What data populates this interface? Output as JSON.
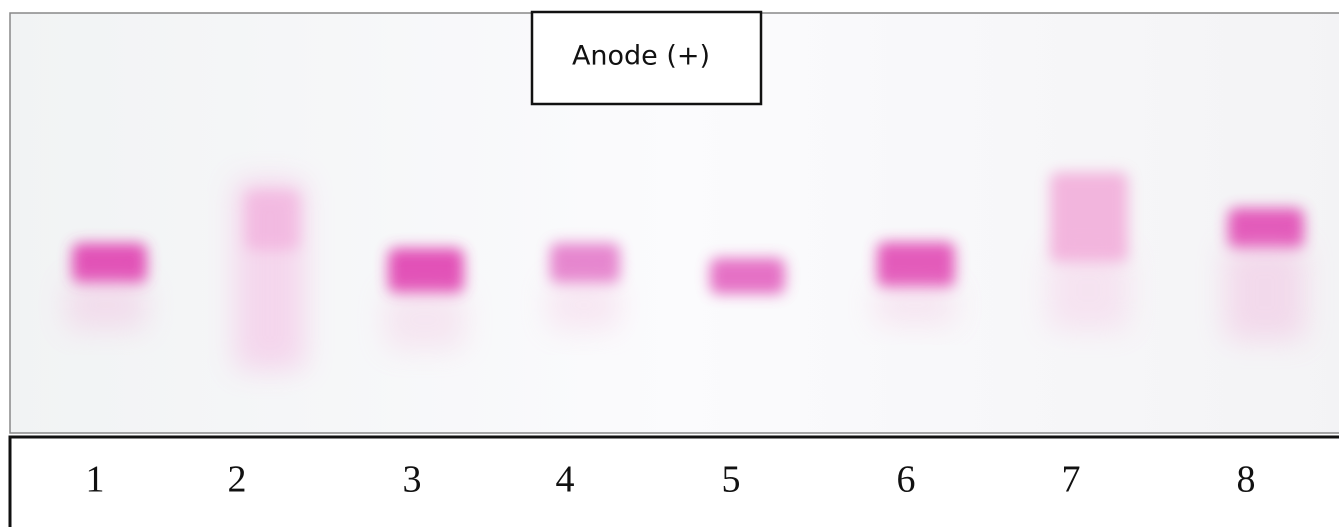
{
  "gel": {
    "label": "Anode (+)",
    "lanes": [
      "1",
      "2",
      "3",
      "4",
      "5",
      "6",
      "7",
      "8"
    ]
  }
}
